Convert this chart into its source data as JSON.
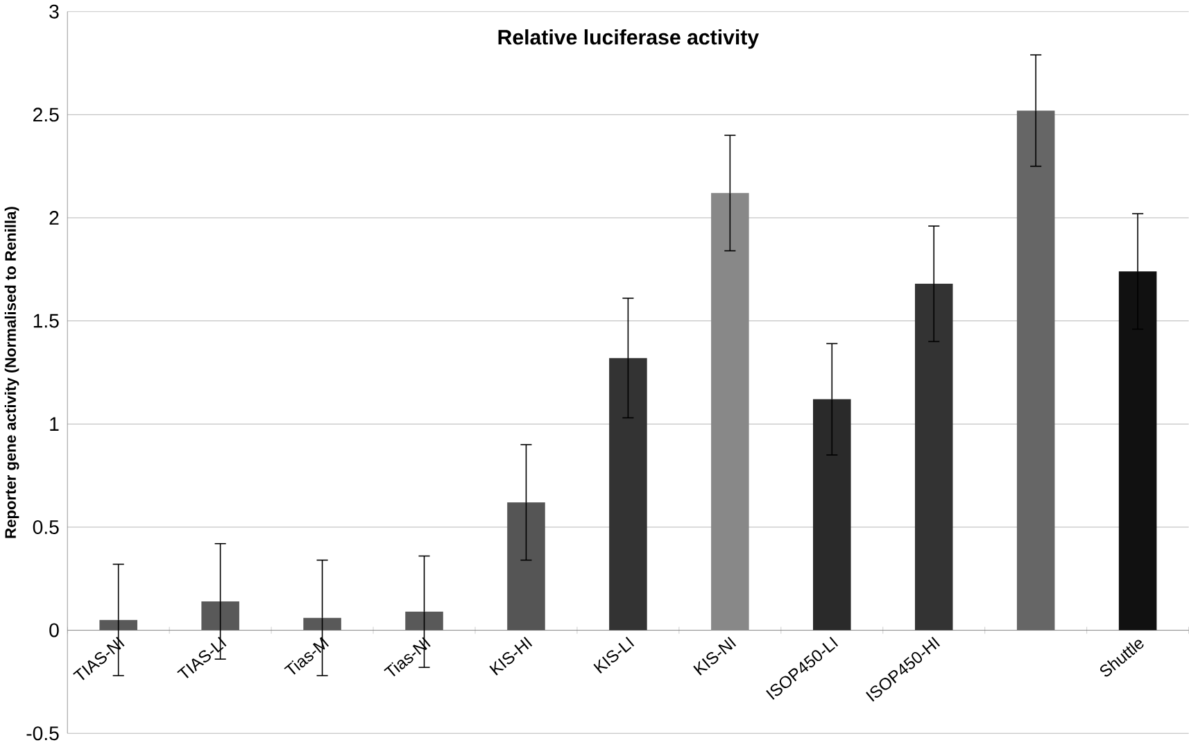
{
  "chart_data": {
    "type": "bar",
    "title": "Relative luciferase activity",
    "ylabel": "Reporter gene activity (Normalised to Renilla)",
    "categories": [
      "TIAS-NI",
      "TIAS-LI",
      "Tias-M",
      "Tias-NI",
      "KIS-HI",
      "KIS-LI",
      "KIS-NI",
      "ISOP450-LI",
      "ISOP450-HI",
      null,
      "Shuttle"
    ],
    "values": [
      0.05,
      0.14,
      0.06,
      0.09,
      0.62,
      1.32,
      2.12,
      1.12,
      1.68,
      2.52,
      1.74
    ],
    "errors": [
      0.27,
      0.28,
      0.28,
      0.27,
      0.28,
      0.29,
      0.28,
      0.27,
      0.28,
      0.27,
      0.28
    ],
    "colors": [
      "#595959",
      "#595959",
      "#595959",
      "#595959",
      "#555555",
      "#333333",
      "#888888",
      "#2a2a2a",
      "#333333",
      "#666666",
      "#111111"
    ],
    "ylim": [
      -0.5,
      3
    ],
    "yticks": [
      -0.5,
      0,
      0.5,
      1,
      1.5,
      2,
      2.5,
      3
    ],
    "grid": "y"
  }
}
